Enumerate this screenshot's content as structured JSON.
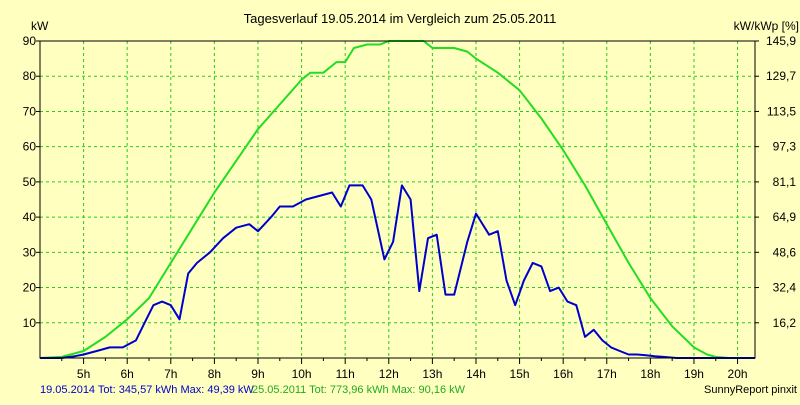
{
  "chart_data": {
    "type": "line",
    "title": "Tagesverlauf 19.05.2014 im Vergleich zum 25.05.2011",
    "ylabel_left": "kW",
    "ylabel_right": "kW/kWp [%]",
    "xlim": [
      4.0,
      20.4
    ],
    "ylim": [
      0,
      90
    ],
    "grid": true,
    "x_ticks": [
      {
        "value": 5,
        "label": "5h"
      },
      {
        "value": 6,
        "label": "6h"
      },
      {
        "value": 7,
        "label": "7h"
      },
      {
        "value": 8,
        "label": "8h"
      },
      {
        "value": 9,
        "label": "9h"
      },
      {
        "value": 10,
        "label": "10h"
      },
      {
        "value": 11,
        "label": "11h"
      },
      {
        "value": 12,
        "label": "12h"
      },
      {
        "value": 13,
        "label": "13h"
      },
      {
        "value": 14,
        "label": "14h"
      },
      {
        "value": 15,
        "label": "15h"
      },
      {
        "value": 16,
        "label": "16h"
      },
      {
        "value": 17,
        "label": "17h"
      },
      {
        "value": 18,
        "label": "18h"
      },
      {
        "value": 19,
        "label": "19h"
      },
      {
        "value": 20,
        "label": "20h"
      }
    ],
    "y_ticks_left": [
      {
        "value": 10,
        "label": "10"
      },
      {
        "value": 20,
        "label": "20"
      },
      {
        "value": 30,
        "label": "30"
      },
      {
        "value": 40,
        "label": "40"
      },
      {
        "value": 50,
        "label": "50"
      },
      {
        "value": 60,
        "label": "60"
      },
      {
        "value": 70,
        "label": "70"
      },
      {
        "value": 80,
        "label": "80"
      },
      {
        "value": 90,
        "label": "90"
      }
    ],
    "y_ticks_right": [
      {
        "value": 10,
        "label": "16,2"
      },
      {
        "value": 20,
        "label": "32,4"
      },
      {
        "value": 30,
        "label": "48,6"
      },
      {
        "value": 40,
        "label": "64,9"
      },
      {
        "value": 50,
        "label": "81,1"
      },
      {
        "value": 60,
        "label": "97,3"
      },
      {
        "value": 70,
        "label": "113,5"
      },
      {
        "value": 80,
        "label": "129,7"
      },
      {
        "value": 90,
        "label": "145,9"
      }
    ],
    "series": [
      {
        "color": "#22dd22",
        "x": [
          4.0,
          4.5,
          5.0,
          5.5,
          6.0,
          6.5,
          7.0,
          7.5,
          8.0,
          8.5,
          9.0,
          9.5,
          10.0,
          10.2,
          10.5,
          10.8,
          11.0,
          11.2,
          11.5,
          11.8,
          12.0,
          12.3,
          12.5,
          12.8,
          13.0,
          13.2,
          13.5,
          13.8,
          14.0,
          14.5,
          15.0,
          15.5,
          16.0,
          16.5,
          17.0,
          17.5,
          18.0,
          18.5,
          19.0,
          19.3,
          19.5,
          19.8,
          20.0,
          20.4
        ],
        "y": [
          0,
          0.3,
          2,
          6,
          11,
          17,
          27,
          37,
          47,
          56,
          65,
          72,
          79,
          81,
          81,
          84,
          84,
          88,
          89,
          89,
          90,
          90,
          90,
          90,
          88,
          88,
          88,
          87,
          85,
          81,
          76,
          68,
          59,
          49,
          38,
          27,
          17,
          9,
          3,
          1,
          0.3,
          0,
          0,
          0
        ]
      },
      {
        "color": "#0000cc",
        "x": [
          4.0,
          4.5,
          4.8,
          5.0,
          5.3,
          5.6,
          5.9,
          6.2,
          6.4,
          6.6,
          6.8,
          7.0,
          7.2,
          7.4,
          7.6,
          7.9,
          8.2,
          8.5,
          8.8,
          9.0,
          9.3,
          9.5,
          9.8,
          10.1,
          10.4,
          10.7,
          10.9,
          11.1,
          11.4,
          11.6,
          11.9,
          12.1,
          12.3,
          12.5,
          12.7,
          12.9,
          13.1,
          13.3,
          13.5,
          13.8,
          14.0,
          14.3,
          14.5,
          14.7,
          14.9,
          15.1,
          15.3,
          15.5,
          15.7,
          15.9,
          16.1,
          16.3,
          16.5,
          16.7,
          16.9,
          17.1,
          17.3,
          17.5,
          17.7,
          17.9,
          18.1,
          18.3,
          18.6,
          18.9,
          19.2,
          19.5,
          19.8,
          20.0,
          20.4
        ],
        "y": [
          0,
          0,
          0.5,
          1,
          2,
          3,
          3,
          5,
          10,
          15,
          16,
          15,
          11,
          24,
          27,
          30,
          34,
          37,
          38,
          36,
          40,
          43,
          43,
          45,
          46,
          47,
          43,
          49,
          49,
          45,
          28,
          33,
          49,
          45,
          19,
          34,
          35,
          18,
          18,
          33,
          41,
          35,
          36,
          22,
          15,
          22,
          27,
          26,
          19,
          20,
          16,
          15,
          6,
          8,
          5,
          3,
          2,
          1,
          1,
          0.8,
          0.5,
          0.3,
          0,
          0,
          0,
          0,
          0,
          0,
          0
        ]
      }
    ]
  },
  "footer": {
    "series1_text": "19.05.2014 Tot: 345,57 kWh Max: 49,39 kW",
    "series2_text": "25.05.2011 Tot: 773,96 kWh Max: 90,16 kW",
    "credit": "SunnyReport pinxit"
  }
}
